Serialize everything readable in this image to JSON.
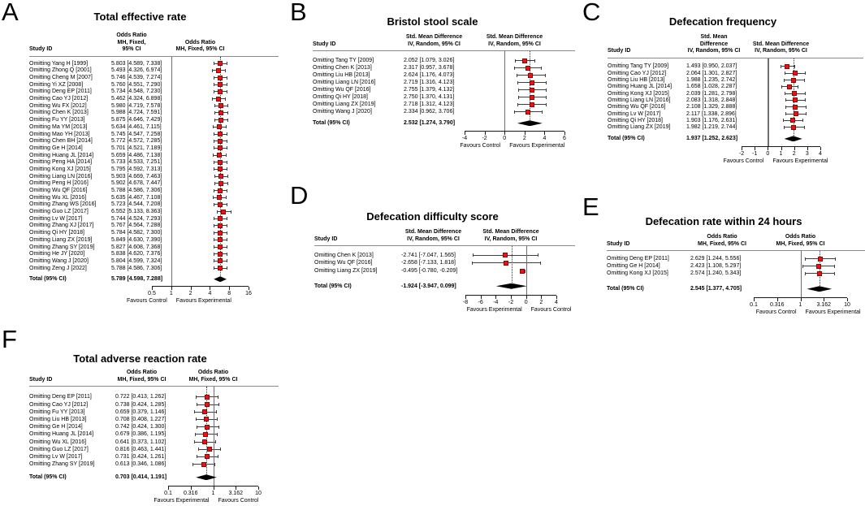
{
  "colors": {
    "marker": "#ee1111",
    "diamond": "#000000",
    "ci_line": "#3f3f3f",
    "ref_line": "#6e6e6e",
    "separator": "#8a8a8a"
  },
  "chart_data": [
    {
      "id": "A",
      "type": "forest",
      "title": "Total effective rate",
      "study_col_header": "Study ID",
      "effect_header_line1": "Odds Ratio",
      "effect_header_line2": "MH, Fixed, 95% CI",
      "scale": "log",
      "axis_min": 0.5,
      "axis_max": 16,
      "ref_value": 1,
      "axis_ticks": [
        "0.5",
        "1",
        "2",
        "4",
        "8",
        "16"
      ],
      "favours_left": "Favours Control",
      "favours_right": "Favours Experimental",
      "studies": [
        {
          "label": "Omitting Yang H [1999]",
          "ci": "5.803 [4.589, 7.338]"
        },
        {
          "label": "Omitting Zhong Q [2001]",
          "ci": "5.493 [4.326, 6.974]"
        },
        {
          "label": "Omitting Cheng M [2007]",
          "ci": "5.746 [4.539, 7.274]"
        },
        {
          "label": "Omitting Yi XZ [2008]",
          "ci": "5.760 [4.551, 7.290]"
        },
        {
          "label": "Omitting Deng EP [2011]",
          "ci": "5.734 [4.548, 7.230]"
        },
        {
          "label": "Omitting Cao YJ [2012]",
          "ci": "5.462 [4.324, 6.898]"
        },
        {
          "label": "Omitting Wu FX [2012]",
          "ci": "5.980 [4.719, 7.578]"
        },
        {
          "label": "Omitting Chen K [2013]",
          "ci": "5.988 [4.724, 7.591]"
        },
        {
          "label": "Omitting Fu YY [2013]",
          "ci": "5.875 [4.646, 7.429]"
        },
        {
          "label": "Omitting Ma YM [2013]",
          "ci": "5.634 [4.461, 7.115]"
        },
        {
          "label": "Omitting Mao YH [2013]",
          "ci": "5.745 [4.547, 7.258]"
        },
        {
          "label": "Omitting Chen BH [2014]",
          "ci": "5.772 [4.572, 7.285]"
        },
        {
          "label": "Omitting Ge H [2014]",
          "ci": "5.701 [4.521, 7.189]"
        },
        {
          "label": "Omitting Huang JL [2014]",
          "ci": "5.659 [4.486, 7.138]"
        },
        {
          "label": "Omitting Peng HA [2014]",
          "ci": "5.733 [4.533, 7.251]"
        },
        {
          "label": "Omitting Kong XJ [2015]",
          "ci": "5.795 [4.592, 7.313]"
        },
        {
          "label": "Omitting Liang LN [2016]",
          "ci": "5.903 [4.669, 7.463]"
        },
        {
          "label": "Omitting Peng H [2016]",
          "ci": "5.902 [4.678, 7.447]"
        },
        {
          "label": "Omitting Wu QF [2016]",
          "ci": "5.788 [4.586, 7.306]"
        },
        {
          "label": "Omitting Wu XL [2016]",
          "ci": "5.635 [4.467, 7.108]"
        },
        {
          "label": "Omitting Zhang WS [2016]",
          "ci": "5.723 [4.544, 7.208]"
        },
        {
          "label": "Omitting Guo LZ [2017]",
          "ci": "6.552 [5.133, 8.363]"
        },
        {
          "label": "Omitting Lv W [2017]",
          "ci": "5.744 [4.524, 7.293]"
        },
        {
          "label": "Omitting Zhang XJ [2017]",
          "ci": "5.767 [4.564, 7.288]"
        },
        {
          "label": "Omitting Qi HY [2018]",
          "ci": "5.784 [4.582, 7.300]"
        },
        {
          "label": "Omitting Liang ZX [2019]",
          "ci": "5.849 [4.630, 7.390]"
        },
        {
          "label": "Omitting Zhang SY [2019]",
          "ci": "5.827 [4.608, 7.368]"
        },
        {
          "label": "Omitting He JY [2020]",
          "ci": "5.838 [4.620, 7.376]"
        },
        {
          "label": "Omitting Wang J [2020]",
          "ci": "5.804 [4.599, 7.324]"
        },
        {
          "label": "Omitting Zeng J [2022]",
          "ci": "5.788 [4.586, 7.306]"
        }
      ],
      "total_label": "Total (95% CI)",
      "total_ci": "5.789 [4.598, 7.288]"
    },
    {
      "id": "B",
      "type": "forest",
      "title": "Bristol stool scale",
      "study_col_header": "Study ID",
      "effect_header_line1": "Std. Mean Difference",
      "effect_header_line2": "IV, Random, 95% CI",
      "scale": "linear",
      "axis_min": -4,
      "axis_max": 6,
      "ref_value": 0,
      "axis_ticks": [
        "-4",
        "-2",
        "0",
        "2",
        "4",
        "6"
      ],
      "favours_left": "Favours Control",
      "favours_right": "Favours Experimental",
      "studies": [
        {
          "label": "Omitting Tang TY [2009]",
          "ci": "2.052 [1.079, 3.026]"
        },
        {
          "label": "Omitting Chen K [2013]",
          "ci": "2.317 [0.957, 3.678]"
        },
        {
          "label": "Omitting Liu HB [2013]",
          "ci": "2.624 [1.176, 4.073]"
        },
        {
          "label": "Omitting Liang LN [2016]",
          "ci": "2.719 [1.316, 4.123]"
        },
        {
          "label": "Omitting Wu QF [2016]",
          "ci": "2.755 [1.379, 4.132]"
        },
        {
          "label": "Omitting Qi HY [2018]",
          "ci": "2.750 [1.370, 4.131]"
        },
        {
          "label": "Omitting Liang ZX [2019]",
          "ci": "2.718 [1.312, 4.123]"
        },
        {
          "label": "Omitting Wang J [2020]",
          "ci": "2.334 [0.962, 3.706]"
        }
      ],
      "total_label": "Total (95% CI)",
      "total_ci": "2.532 [1.274, 3.790]"
    },
    {
      "id": "C",
      "type": "forest",
      "title": "Defecation frequency",
      "study_col_header": "Study ID",
      "effect_header_line1": "Std. Mean Difference",
      "effect_header_line2": "IV, Random, 95% CI",
      "scale": "linear",
      "axis_min": -2,
      "axis_max": 4,
      "ref_value": 0,
      "axis_ticks": [
        "-2",
        "-1",
        "0",
        "1",
        "2",
        "3",
        "4"
      ],
      "favours_left": "Favours Control",
      "favours_right": "Favours Experimental",
      "studies": [
        {
          "label": "Omitting Tang TY [2009]",
          "ci": "1.493 [0.950, 2.037]"
        },
        {
          "label": "Omitting Cao YJ [2012]",
          "ci": "2.064 [1.301, 2.827]"
        },
        {
          "label": "Omitting Liu HB [2013]",
          "ci": "1.988 [1.235, 2.742]"
        },
        {
          "label": "Omitting Huang JL [2014]",
          "ci": "1.658 [1.028, 2.287]"
        },
        {
          "label": "Omitting Kong XJ [2015]",
          "ci": "2.039 [1.281, 2.798]"
        },
        {
          "label": "Omitting Liang LN [2016]",
          "ci": "2.083 [1.318, 2.848]"
        },
        {
          "label": "Omitting Wu QF [2016]",
          "ci": "2.108 [1.329, 2.888]"
        },
        {
          "label": "Omitting Lv W [2017]",
          "ci": "2.117 [1.338, 2.896]"
        },
        {
          "label": "Omitting Qi HY [2018]",
          "ci": "1.903 [1.176, 2.631]"
        },
        {
          "label": "Omitting Liang ZX [2019]",
          "ci": "1.982 [1.219, 2.744]"
        }
      ],
      "total_label": "Total (95% CI)",
      "total_ci": "1.937 [1.252, 2.623]"
    },
    {
      "id": "D",
      "type": "forest",
      "title": "Defecation difficulty score",
      "study_col_header": "Study ID",
      "effect_header_line1": "Std. Mean Difference",
      "effect_header_line2": "IV, Random, 95% CI",
      "scale": "linear",
      "axis_min": -8,
      "axis_max": 4,
      "ref_value": 0,
      "axis_ticks": [
        "-8",
        "-6",
        "-4",
        "-2",
        "0",
        "2",
        "4"
      ],
      "favours_left": "Favours Experimental",
      "favours_right": "Favours Control",
      "studies": [
        {
          "label": "Omitting Chen K [2013]",
          "ci": "-2.741 [-7.047, 1.565]"
        },
        {
          "label": "Omitting Wu QF [2016]",
          "ci": "-2.658 [-7.133, 1.818]"
        },
        {
          "label": "Omitting Liang ZX [2019]",
          "ci": "-0.495 [-0.780, -0.209]"
        }
      ],
      "total_label": "Total (95% CI)",
      "total_ci": "-1.924 [-3.947, 0.099]"
    },
    {
      "id": "E",
      "type": "forest",
      "title": "Defecation rate within 24 hours",
      "study_col_header": "Study ID",
      "effect_header_line1": "Odds Ratio",
      "effect_header_line2": "MH, Fixed, 95% CI",
      "scale": "log",
      "axis_min": 0.1,
      "axis_max": 10,
      "ref_value": 1,
      "axis_ticks": [
        "0.1",
        "0.316",
        "1",
        "3.162",
        "10"
      ],
      "favours_left": "Favours Control",
      "favours_right": "Favours Experimental",
      "studies": [
        {
          "label": "Omitting Deng EP [2011]",
          "ci": "2.629 [1.244, 5.556]"
        },
        {
          "label": "Omitting Ge H [2014]",
          "ci": "2.423 [1.108, 5.297]"
        },
        {
          "label": "Omitting Kong XJ [2015]",
          "ci": "2.574 [1.240, 5.343]"
        }
      ],
      "total_label": "Total (95% CI)",
      "total_ci": "2.545 [1.377, 4.705]"
    },
    {
      "id": "F",
      "type": "forest",
      "title": "Total adverse reaction rate",
      "study_col_header": "Study ID",
      "effect_header_line1": "Odds Ratio",
      "effect_header_line2": "MH, Fixed, 95% CI",
      "scale": "log",
      "axis_min": 0.1,
      "axis_max": 10,
      "ref_value": 1,
      "axis_ticks": [
        "0.1",
        "0.316",
        "1",
        "3.162",
        "10"
      ],
      "favours_left": "Favours Experimental",
      "favours_right": "Favours Control",
      "studies": [
        {
          "label": "Omitting Deng EP [2011]",
          "ci": "0.722 [0.413, 1.262]"
        },
        {
          "label": "Omitting Cao YJ [2012]",
          "ci": "0.738 [0.424, 1.285]"
        },
        {
          "label": "Omitting Fu YY [2013]",
          "ci": "0.659 [0.379, 1.146]"
        },
        {
          "label": "Omitting Liu HB [2013]",
          "ci": "0.708 [0.408, 1.227]"
        },
        {
          "label": "Omitting Ge H [2014]",
          "ci": "0.742 [0.424, 1.300]"
        },
        {
          "label": "Omitting Huang JL [2014]",
          "ci": "0.679 [0.386, 1.195]"
        },
        {
          "label": "Omitting Wu XL [2016]",
          "ci": "0.641 [0.373, 1.102]"
        },
        {
          "label": "Omitting Guo LZ [2017]",
          "ci": "0.816 [0.463, 1.441]"
        },
        {
          "label": "Omitting Lv W [2017]",
          "ci": "0.731 [0.424, 1.261]"
        },
        {
          "label": "Omitting Zhang SY [2019]",
          "ci": "0.613 [0.346, 1.086]"
        }
      ],
      "total_label": "Total (95% CI)",
      "total_ci": "0.703 [0.414, 1.191]"
    }
  ]
}
